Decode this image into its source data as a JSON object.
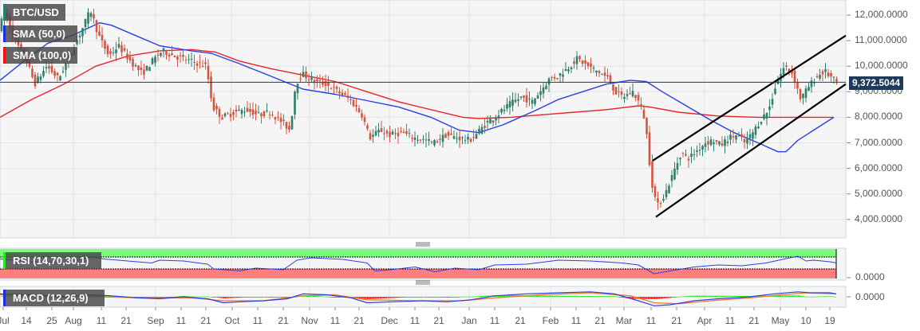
{
  "chart_data": {
    "type": "candlestick",
    "title": "BTC/USD",
    "symbol": "BTC/USD",
    "last_price": "9,372.5044",
    "last_price_value": 9372.5044,
    "y_axis": {
      "ticks": [
        "12,000.0000",
        "11,000.0000",
        "10,000.0000",
        "9,000.0000",
        "8,000.0000",
        "7,000.0000",
        "6,000.0000",
        "5,000.0000",
        "4,000.0000"
      ],
      "tick_values": [
        12000,
        11000,
        10000,
        9000,
        8000,
        7000,
        6000,
        5000,
        4000
      ],
      "ylim": [
        3600,
        12600
      ]
    },
    "x_axis": {
      "labels": [
        "Jul",
        "14",
        "25",
        "Aug",
        "11",
        "21",
        "Sep",
        "11",
        "21",
        "Oct",
        "11",
        "21",
        "Nov",
        "11",
        "21",
        "Dec",
        "11",
        "21",
        "Jan",
        "11",
        "21",
        "Feb",
        "11",
        "21",
        "Mar",
        "11",
        "21",
        "Apr",
        "11",
        "21",
        "May",
        "10",
        "19"
      ],
      "positions": [
        4,
        33,
        65,
        92,
        127,
        158,
        195,
        227,
        258,
        291,
        323,
        355,
        388,
        420,
        450,
        488,
        520,
        550,
        588,
        620,
        652,
        690,
        722,
        752,
        782,
        816,
        848,
        883,
        915,
        945,
        978,
        1010,
        1040
      ]
    },
    "price_path": [
      [
        0,
        11500
      ],
      [
        8,
        12100
      ],
      [
        20,
        11000
      ],
      [
        35,
        10200
      ],
      [
        45,
        9300
      ],
      [
        60,
        10000
      ],
      [
        75,
        9500
      ],
      [
        90,
        10500
      ],
      [
        105,
        11500
      ],
      [
        115,
        12200
      ],
      [
        125,
        11200
      ],
      [
        138,
        10400
      ],
      [
        150,
        10800
      ],
      [
        165,
        10200
      ],
      [
        180,
        9700
      ],
      [
        195,
        10300
      ],
      [
        205,
        10600
      ],
      [
        220,
        10400
      ],
      [
        240,
        10200
      ],
      [
        260,
        10000
      ],
      [
        268,
        8400
      ],
      [
        280,
        8000
      ],
      [
        295,
        8200
      ],
      [
        310,
        8300
      ],
      [
        325,
        8100
      ],
      [
        340,
        8200
      ],
      [
        355,
        7800
      ],
      [
        365,
        7500
      ],
      [
        372,
        9300
      ],
      [
        380,
        9700
      ],
      [
        395,
        9400
      ],
      [
        410,
        9300
      ],
      [
        425,
        9000
      ],
      [
        440,
        8700
      ],
      [
        455,
        8100
      ],
      [
        465,
        7200
      ],
      [
        478,
        7500
      ],
      [
        490,
        7300
      ],
      [
        505,
        7400
      ],
      [
        520,
        7200
      ],
      [
        535,
        7100
      ],
      [
        545,
        7000
      ],
      [
        560,
        7300
      ],
      [
        575,
        7200
      ],
      [
        590,
        7100
      ],
      [
        600,
        7400
      ],
      [
        612,
        7800
      ],
      [
        625,
        8100
      ],
      [
        640,
        8500
      ],
      [
        655,
        8800
      ],
      [
        668,
        8600
      ],
      [
        678,
        9000
      ],
      [
        690,
        9500
      ],
      [
        700,
        9600
      ],
      [
        712,
        9900
      ],
      [
        725,
        10300
      ],
      [
        738,
        10000
      ],
      [
        750,
        9800
      ],
      [
        765,
        9500
      ],
      [
        772,
        9000
      ],
      [
        782,
        8800
      ],
      [
        795,
        9000
      ],
      [
        802,
        8600
      ],
      [
        810,
        7900
      ],
      [
        818,
        5500
      ],
      [
        825,
        4500
      ],
      [
        835,
        5000
      ],
      [
        845,
        5800
      ],
      [
        855,
        6600
      ],
      [
        865,
        6400
      ],
      [
        875,
        6700
      ],
      [
        885,
        7000
      ],
      [
        895,
        7100
      ],
      [
        905,
        6900
      ],
      [
        915,
        7200
      ],
      [
        925,
        7300
      ],
      [
        935,
        7000
      ],
      [
        945,
        7400
      ],
      [
        955,
        7900
      ],
      [
        965,
        8300
      ],
      [
        975,
        9400
      ],
      [
        985,
        10000
      ],
      [
        995,
        9700
      ],
      [
        1005,
        8700
      ],
      [
        1015,
        9200
      ],
      [
        1025,
        9600
      ],
      [
        1035,
        9800
      ],
      [
        1045,
        9500
      ],
      [
        1050,
        9372
      ]
    ],
    "sma50_path": [
      [
        0,
        9450
      ],
      [
        30,
        10200
      ],
      [
        60,
        10900
      ],
      [
        90,
        11200
      ],
      [
        125,
        11700
      ],
      [
        140,
        11600
      ],
      [
        170,
        11200
      ],
      [
        200,
        10800
      ],
      [
        240,
        10600
      ],
      [
        265,
        10500
      ],
      [
        300,
        10100
      ],
      [
        340,
        9600
      ],
      [
        380,
        9100
      ],
      [
        420,
        8900
      ],
      [
        460,
        8650
      ],
      [
        500,
        8400
      ],
      [
        540,
        8000
      ],
      [
        575,
        7500
      ],
      [
        600,
        7400
      ],
      [
        630,
        7700
      ],
      [
        670,
        8250
      ],
      [
        700,
        8700
      ],
      [
        730,
        9000
      ],
      [
        760,
        9300
      ],
      [
        790,
        9450
      ],
      [
        810,
        9400
      ],
      [
        830,
        9000
      ],
      [
        860,
        8450
      ],
      [
        890,
        7900
      ],
      [
        920,
        7400
      ],
      [
        950,
        7000
      ],
      [
        975,
        6650
      ],
      [
        985,
        6650
      ],
      [
        1000,
        7100
      ],
      [
        1020,
        7500
      ],
      [
        1045,
        8000
      ]
    ],
    "sma100_path": [
      [
        0,
        8000
      ],
      [
        40,
        8700
      ],
      [
        80,
        9300
      ],
      [
        120,
        10000
      ],
      [
        160,
        10400
      ],
      [
        200,
        10600
      ],
      [
        240,
        10650
      ],
      [
        270,
        10550
      ],
      [
        300,
        10200
      ],
      [
        340,
        9900
      ],
      [
        380,
        9650
      ],
      [
        420,
        9400
      ],
      [
        460,
        9000
      ],
      [
        500,
        8600
      ],
      [
        540,
        8300
      ],
      [
        580,
        8000
      ],
      [
        600,
        7950
      ],
      [
        640,
        8000
      ],
      [
        680,
        8100
      ],
      [
        720,
        8200
      ],
      [
        760,
        8300
      ],
      [
        800,
        8450
      ],
      [
        815,
        8400
      ],
      [
        850,
        8200
      ],
      [
        900,
        8050
      ],
      [
        950,
        8000
      ],
      [
        1000,
        8000
      ],
      [
        1045,
        8000
      ]
    ],
    "channel": {
      "upper": [
        [
          818,
          6300
        ],
        [
          1060,
          11200
        ]
      ],
      "lower": [
        [
          822,
          4100
        ],
        [
          1060,
          9300
        ]
      ],
      "color": "#000000"
    },
    "rsi": {
      "label": "RSI (14,70,30,1)",
      "overbought": 70,
      "oversold": 30,
      "zero_label": "0.0000",
      "path": [
        [
          0,
          65
        ],
        [
          40,
          58
        ],
        [
          80,
          55
        ],
        [
          115,
          70
        ],
        [
          130,
          65
        ],
        [
          160,
          60
        ],
        [
          190,
          55
        ],
        [
          200,
          62
        ],
        [
          230,
          60
        ],
        [
          260,
          52
        ],
        [
          268,
          40
        ],
        [
          280,
          38
        ],
        [
          300,
          35
        ],
        [
          320,
          42
        ],
        [
          340,
          40
        ],
        [
          355,
          38
        ],
        [
          372,
          62
        ],
        [
          390,
          68
        ],
        [
          430,
          64
        ],
        [
          460,
          55
        ],
        [
          470,
          35
        ],
        [
          490,
          38
        ],
        [
          520,
          45
        ],
        [
          545,
          33
        ],
        [
          570,
          42
        ],
        [
          600,
          38
        ],
        [
          620,
          50
        ],
        [
          660,
          52
        ],
        [
          700,
          62
        ],
        [
          740,
          60
        ],
        [
          780,
          55
        ],
        [
          800,
          50
        ],
        [
          820,
          28
        ],
        [
          840,
          35
        ],
        [
          870,
          45
        ],
        [
          900,
          50
        ],
        [
          930,
          48
        ],
        [
          960,
          55
        ],
        [
          990,
          68
        ],
        [
          1000,
          72
        ],
        [
          1010,
          60
        ],
        [
          1020,
          62
        ],
        [
          1040,
          58
        ],
        [
          1048,
          55
        ]
      ]
    },
    "macd": {
      "label": "MACD (12,26,9)",
      "zero_label": "0.0000",
      "macd_path": [
        [
          0,
          3
        ],
        [
          40,
          2
        ],
        [
          80,
          0
        ],
        [
          115,
          2
        ],
        [
          140,
          1
        ],
        [
          170,
          -1
        ],
        [
          200,
          -2
        ],
        [
          230,
          0
        ],
        [
          260,
          -2
        ],
        [
          280,
          -6
        ],
        [
          300,
          -5
        ],
        [
          330,
          -4
        ],
        [
          360,
          -2
        ],
        [
          380,
          3
        ],
        [
          410,
          2
        ],
        [
          440,
          -1
        ],
        [
          460,
          -6
        ],
        [
          490,
          -5
        ],
        [
          530,
          -4
        ],
        [
          560,
          -5
        ],
        [
          590,
          -3
        ],
        [
          620,
          1
        ],
        [
          660,
          3
        ],
        [
          700,
          4
        ],
        [
          740,
          5
        ],
        [
          770,
          3
        ],
        [
          800,
          -4
        ],
        [
          820,
          -9
        ],
        [
          840,
          -8
        ],
        [
          870,
          -4
        ],
        [
          900,
          -2
        ],
        [
          940,
          0
        ],
        [
          970,
          3
        ],
        [
          1000,
          5
        ],
        [
          1015,
          4
        ],
        [
          1040,
          4
        ],
        [
          1048,
          3
        ]
      ],
      "signal_path": [
        [
          0,
          2
        ],
        [
          60,
          1
        ],
        [
          120,
          0
        ],
        [
          180,
          -1
        ],
        [
          240,
          -1
        ],
        [
          280,
          -4
        ],
        [
          330,
          -4
        ],
        [
          380,
          1
        ],
        [
          420,
          2
        ],
        [
          460,
          -3
        ],
        [
          520,
          -4
        ],
        [
          580,
          -4
        ],
        [
          620,
          -1
        ],
        [
          680,
          2
        ],
        [
          740,
          4
        ],
        [
          790,
          1
        ],
        [
          820,
          -6
        ],
        [
          850,
          -7
        ],
        [
          890,
          -4
        ],
        [
          940,
          -1
        ],
        [
          980,
          2
        ],
        [
          1010,
          4
        ],
        [
          1048,
          3
        ]
      ]
    },
    "legend": [
      {
        "label": "BTC/USD",
        "color": "#26806a"
      },
      {
        "label": "SMA (50,0)",
        "color": "#1a2fe0"
      },
      {
        "label": "SMA (100,0)",
        "color": "#ff1010"
      }
    ],
    "colors": {
      "up": "#2f7f6a",
      "down": "#d4543f",
      "sma50": "#2a3fe6",
      "sma100": "#e8242a",
      "price_line": "#1f3b5c",
      "rsi_line": "#2a3fe6",
      "rsi_overbought_fill": "#7dfb7d",
      "rsi_oversold_fill": "#ff7f7f",
      "macd_line": "#2a3fe6",
      "signal_line": "#f07a2a",
      "hist_pos": "#22dd22",
      "hist_neg": "#ff1a1a",
      "grid": "#e3e3e3",
      "panel_bg": "#f5f5f5"
    },
    "grid": true
  }
}
